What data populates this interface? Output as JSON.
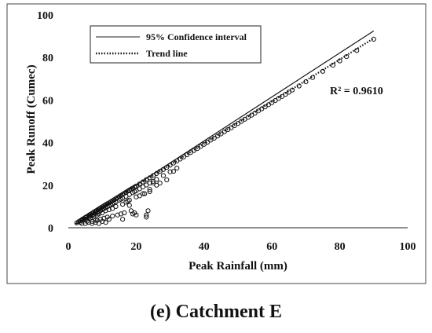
{
  "caption": {
    "label": "(e)",
    "text": " Catchment E"
  },
  "chart_data": {
    "type": "scatter",
    "xlabel": "Peak Rainfall (mm)",
    "ylabel": "Peak Runoff (Cumec)",
    "xlim": [
      0,
      100
    ],
    "ylim": [
      0,
      100
    ],
    "xticks": [
      0,
      20,
      40,
      60,
      80,
      100
    ],
    "yticks": [
      0,
      20,
      40,
      60,
      80,
      100
    ],
    "grid": false,
    "legend": {
      "placement": "top-left",
      "items": [
        {
          "label": "95% Confidence interval",
          "style": "solid"
        },
        {
          "label": "Trend line",
          "style": "dotted"
        }
      ]
    },
    "annotation": "R² = 0.9610",
    "lines": [
      {
        "label_ref": "95% Confidence interval",
        "x": [
          2,
          90
        ],
        "y": [
          1.5,
          92.5
        ]
      },
      {
        "label_ref": "Trend line",
        "x": [
          2,
          90
        ],
        "y": [
          1.8,
          89
        ]
      }
    ],
    "points": {
      "x": [
        2.5,
        3.0,
        3.5,
        4.0,
        4.2,
        4.5,
        5.0,
        5.2,
        5.5,
        6.0,
        6.3,
        6.5,
        7.0,
        7.4,
        7.8,
        8.0,
        8.3,
        8.7,
        9.0,
        9.3,
        9.6,
        10.0,
        10.4,
        10.8,
        11.0,
        11.5,
        12.0,
        12.5,
        13.0,
        13.5,
        14.0,
        14.5,
        15.0,
        15.5,
        16.0,
        16.5,
        17.0,
        17.5,
        18.0,
        18.5,
        19.0,
        19.5,
        20.0,
        21.0,
        22.0,
        23.0,
        24.0,
        25.0,
        26.0,
        27.0,
        28.0,
        29.0,
        30.0,
        31.0,
        32.0,
        33.0,
        34.0,
        35.0,
        36.0,
        37.0,
        38.0,
        39.0,
        40.0,
        41.0,
        42.0,
        43.0,
        44.0,
        45.0,
        46.0,
        47.0,
        48.0,
        49.0,
        50.0,
        51.0,
        52.0,
        53.0,
        54.0,
        55.0,
        56.0,
        57.0,
        58.0,
        59.0,
        60.0,
        61.0,
        62.0,
        63.0,
        64.0,
        65.0,
        66.0,
        68.0,
        70.0,
        72.0,
        75.0,
        78.0,
        80.0,
        82.0,
        85.0,
        90.0,
        3.5,
        4.5,
        5.0,
        6.0,
        6.5,
        7.0,
        7.5,
        8.0,
        8.5,
        9.0,
        9.5,
        10.0,
        10.5,
        11.0,
        11.5,
        12.0,
        12.5,
        13.0,
        13.5,
        14.0,
        15.0,
        15.5,
        16.0,
        17.0,
        18.0,
        19.0,
        19.5,
        20.0,
        21.0,
        22.0,
        23.0,
        24.0,
        25.0,
        26.0,
        28.0,
        30.0,
        32.0,
        4.0,
        5.5,
        6.5,
        7.5,
        8.5,
        9.0,
        10.0,
        11.0,
        12.0,
        13.0,
        14.0,
        16.0,
        17.0,
        18.0,
        20.0,
        22.0,
        24.0,
        26.0,
        27.0,
        29.0,
        31.0,
        5.0,
        6.0,
        7.0,
        8.0,
        9.5,
        10.5,
        11.5,
        13.0,
        14.5,
        15.5,
        16.5,
        18.5,
        7.0,
        8.0,
        8.5,
        9.0,
        10.0,
        11.0,
        12.0,
        16.0,
        19.0,
        19.5,
        20.0,
        21.0,
        22.5,
        23.0,
        23.0,
        23.5,
        24.0,
        25.0,
        17.5,
        18.0
      ],
      "y": [
        2.3,
        2.8,
        3.3,
        3.8,
        4.0,
        4.3,
        4.8,
        5.0,
        5.3,
        5.8,
        6.1,
        6.3,
        6.8,
        7.2,
        7.6,
        7.8,
        8.1,
        8.5,
        8.8,
        9.1,
        9.4,
        9.8,
        10.2,
        10.6,
        10.8,
        11.3,
        11.7,
        12.2,
        12.7,
        13.2,
        13.7,
        14.2,
        14.7,
        15.2,
        15.7,
        16.2,
        16.7,
        17.2,
        17.7,
        18.2,
        18.6,
        19.1,
        19.6,
        20.6,
        21.6,
        22.6,
        23.5,
        24.5,
        25.5,
        26.5,
        27.4,
        28.4,
        29.4,
        30.4,
        31.4,
        32.3,
        33.3,
        34.3,
        35.3,
        36.3,
        37.2,
        38.2,
        39.2,
        40.2,
        41.2,
        42.1,
        43.1,
        44.1,
        45.1,
        46.1,
        47.0,
        48.0,
        49.0,
        50.0,
        51.0,
        51.9,
        52.9,
        53.9,
        54.9,
        55.9,
        56.8,
        57.8,
        58.8,
        59.8,
        60.8,
        61.7,
        62.7,
        63.7,
        64.7,
        66.6,
        68.6,
        70.6,
        73.5,
        76.4,
        78.4,
        80.4,
        83.3,
        88.6,
        2.6,
        3.6,
        4.0,
        4.9,
        5.4,
        5.9,
        6.3,
        6.7,
        7.2,
        7.6,
        8.1,
        8.5,
        9.0,
        9.4,
        9.9,
        10.3,
        10.8,
        11.2,
        11.7,
        12.1,
        13.0,
        13.4,
        13.9,
        14.8,
        15.6,
        16.5,
        17.0,
        17.4,
        18.3,
        19.2,
        20.1,
        21.0,
        21.8,
        22.7,
        24.5,
        26.3,
        28.0,
        2.0,
        3.0,
        4.5,
        5.5,
        6.0,
        6.5,
        7.0,
        8.0,
        8.5,
        9.0,
        10.0,
        11.0,
        12.0,
        13.0,
        14.5,
        16.0,
        18.0,
        20.0,
        21.0,
        22.5,
        26.5,
        2.0,
        2.5,
        3.0,
        3.5,
        4.0,
        4.5,
        5.0,
        5.5,
        6.0,
        6.5,
        7.0,
        8.0,
        2.0,
        2.5,
        3.5,
        2.0,
        3.0,
        2.5,
        4.0,
        4.0,
        6.5,
        7.0,
        6.0,
        15.0,
        16.0,
        5.0,
        6.0,
        8.0,
        17.0,
        21.0,
        12.5,
        10.5
      ]
    }
  },
  "colors": {
    "ink": "#111111",
    "frame": "#444444"
  }
}
